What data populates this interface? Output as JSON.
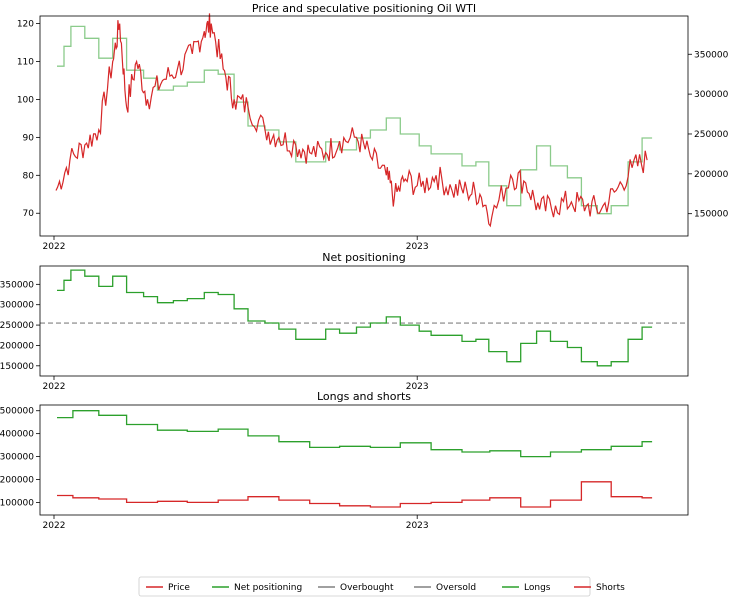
{
  "chart_data": [
    {
      "type": "line",
      "title": "Price and speculative positioning Oil WTI",
      "x_tick_labels": [
        "2022",
        "2023"
      ],
      "x_range": [
        "2022-01-01",
        "2023-08-31"
      ],
      "left_axis": {
        "ylim": [
          64,
          122
        ],
        "ticks": [
          70,
          80,
          90,
          100,
          110,
          120
        ]
      },
      "right_axis": {
        "ylim": [
          122000,
          398000
        ],
        "ticks": [
          150000,
          200000,
          250000,
          300000,
          350000
        ]
      },
      "series": [
        {
          "name": "Price",
          "axis": "left",
          "color": "#d62728",
          "x": [
            "2022-01-03",
            "2022-01-17",
            "2022-02-01",
            "2022-02-15",
            "2022-03-01",
            "2022-03-08",
            "2022-03-15",
            "2022-03-25",
            "2022-04-05",
            "2022-04-20",
            "2022-05-05",
            "2022-05-20",
            "2022-06-01",
            "2022-06-08",
            "2022-06-20",
            "2022-07-01",
            "2022-07-15",
            "2022-08-01",
            "2022-08-15",
            "2022-09-01",
            "2022-09-15",
            "2022-10-01",
            "2022-10-15",
            "2022-11-01",
            "2022-11-15",
            "2022-12-01",
            "2022-12-09",
            "2022-12-20",
            "2023-01-05",
            "2023-01-20",
            "2023-02-05",
            "2023-02-20",
            "2023-03-05",
            "2023-03-17",
            "2023-04-05",
            "2023-04-20",
            "2023-05-04",
            "2023-05-20",
            "2023-06-05",
            "2023-06-20",
            "2023-07-05",
            "2023-07-20",
            "2023-08-05",
            "2023-08-20"
          ],
          "y": [
            76,
            84,
            88,
            92,
            110,
            120,
            98,
            110,
            100,
            105,
            108,
            112,
            118,
            120,
            108,
            100,
            98,
            92,
            90,
            88,
            86,
            86,
            89,
            90,
            85,
            80,
            74,
            79,
            77,
            80,
            76,
            76,
            75,
            69,
            80,
            78,
            71,
            72,
            73,
            72,
            71,
            76,
            82,
            84
          ]
        },
        {
          "name": "Net positioning",
          "axis": "right",
          "color": "#2ca02c",
          "alpha": 0.55,
          "x": [
            "2022-01-04",
            "2022-01-11",
            "2022-01-18",
            "2022-02-01",
            "2022-02-15",
            "2022-03-01",
            "2022-03-15",
            "2022-04-01",
            "2022-04-15",
            "2022-05-01",
            "2022-05-15",
            "2022-06-01",
            "2022-06-15",
            "2022-07-01",
            "2022-07-15",
            "2022-08-01",
            "2022-08-15",
            "2022-09-01",
            "2022-09-15",
            "2022-10-01",
            "2022-10-15",
            "2022-11-01",
            "2022-11-15",
            "2022-12-01",
            "2022-12-15",
            "2023-01-03",
            "2023-01-15",
            "2023-02-01",
            "2023-02-15",
            "2023-03-01",
            "2023-03-14",
            "2023-04-01",
            "2023-04-15",
            "2023-05-01",
            "2023-05-15",
            "2023-06-01",
            "2023-06-15",
            "2023-07-01",
            "2023-07-15",
            "2023-08-01",
            "2023-08-15"
          ],
          "y": [
            335000,
            360000,
            385000,
            370000,
            345000,
            370000,
            330000,
            320000,
            305000,
            310000,
            315000,
            330000,
            325000,
            290000,
            260000,
            255000,
            240000,
            215000,
            215000,
            240000,
            230000,
            245000,
            255000,
            270000,
            250000,
            235000,
            225000,
            225000,
            210000,
            215000,
            185000,
            160000,
            205000,
            235000,
            210000,
            195000,
            160000,
            150000,
            160000,
            215000,
            245000
          ]
        }
      ]
    },
    {
      "type": "line",
      "title": "Net positioning",
      "x_tick_labels": [
        "2022",
        "2023"
      ],
      "ylim": [
        125000,
        395000
      ],
      "y_ticks": [
        150000,
        200000,
        250000,
        300000,
        350000
      ],
      "series": [
        {
          "name": "Net positioning",
          "color": "#2ca02c",
          "x": [
            "2022-01-04",
            "2022-01-11",
            "2022-01-18",
            "2022-02-01",
            "2022-02-15",
            "2022-03-01",
            "2022-03-15",
            "2022-04-01",
            "2022-04-15",
            "2022-05-01",
            "2022-05-15",
            "2022-06-01",
            "2022-06-15",
            "2022-07-01",
            "2022-07-15",
            "2022-08-01",
            "2022-08-15",
            "2022-09-01",
            "2022-09-15",
            "2022-10-01",
            "2022-10-15",
            "2022-11-01",
            "2022-11-15",
            "2022-12-01",
            "2022-12-15",
            "2023-01-03",
            "2023-01-15",
            "2023-02-01",
            "2023-02-15",
            "2023-03-01",
            "2023-03-14",
            "2023-04-01",
            "2023-04-15",
            "2023-05-01",
            "2023-05-15",
            "2023-06-01",
            "2023-06-15",
            "2023-07-01",
            "2023-07-15",
            "2023-08-01",
            "2023-08-15"
          ],
          "y": [
            335000,
            360000,
            385000,
            370000,
            345000,
            370000,
            330000,
            320000,
            305000,
            310000,
            315000,
            330000,
            325000,
            290000,
            260000,
            255000,
            240000,
            215000,
            215000,
            240000,
            230000,
            245000,
            255000,
            270000,
            250000,
            235000,
            225000,
            225000,
            210000,
            215000,
            185000,
            160000,
            205000,
            235000,
            210000,
            195000,
            160000,
            150000,
            160000,
            215000,
            245000
          ]
        },
        {
          "name": "Overbought",
          "color": "#808080",
          "dashed": true,
          "y_const": 255000
        },
        {
          "name": "Oversold",
          "color": "#808080",
          "dashed": true,
          "y_const": 255000
        }
      ]
    },
    {
      "type": "line",
      "title": "Longs and shorts",
      "x_tick_labels": [
        "2022",
        "2023"
      ],
      "ylim": [
        45000,
        525000
      ],
      "y_ticks": [
        100000,
        200000,
        300000,
        400000,
        500000
      ],
      "series": [
        {
          "name": "Longs",
          "color": "#2ca02c",
          "x": [
            "2022-01-04",
            "2022-01-20",
            "2022-02-15",
            "2022-03-15",
            "2022-04-15",
            "2022-05-15",
            "2022-06-15",
            "2022-07-15",
            "2022-08-15",
            "2022-09-15",
            "2022-10-15",
            "2022-11-15",
            "2022-12-15",
            "2023-01-15",
            "2023-02-15",
            "2023-03-15",
            "2023-04-15",
            "2023-05-15",
            "2023-06-15",
            "2023-07-15",
            "2023-08-15"
          ],
          "y": [
            470000,
            500000,
            480000,
            440000,
            415000,
            410000,
            420000,
            390000,
            365000,
            340000,
            345000,
            340000,
            360000,
            330000,
            320000,
            325000,
            300000,
            320000,
            330000,
            345000,
            365000
          ]
        },
        {
          "name": "Shorts",
          "color": "#d62728",
          "x": [
            "2022-01-04",
            "2022-01-20",
            "2022-02-15",
            "2022-03-15",
            "2022-04-15",
            "2022-05-15",
            "2022-06-15",
            "2022-07-15",
            "2022-08-15",
            "2022-09-15",
            "2022-10-15",
            "2022-11-15",
            "2022-12-15",
            "2023-01-15",
            "2023-02-15",
            "2023-03-15",
            "2023-04-15",
            "2023-05-15",
            "2023-06-15",
            "2023-07-15",
            "2023-08-15"
          ],
          "y": [
            130000,
            120000,
            115000,
            100000,
            105000,
            100000,
            110000,
            125000,
            110000,
            95000,
            85000,
            80000,
            95000,
            100000,
            110000,
            120000,
            80000,
            110000,
            190000,
            125000,
            120000
          ]
        }
      ]
    }
  ],
  "legend": {
    "placement": "bottom-center",
    "entries": [
      {
        "label": "Price",
        "color": "#d62728",
        "dashed": false
      },
      {
        "label": "Net positioning",
        "color": "#2ca02c",
        "dashed": false
      },
      {
        "label": "Overbought",
        "color": "#808080",
        "dashed": false
      },
      {
        "label": "Oversold",
        "color": "#808080",
        "dashed": false
      },
      {
        "label": "Longs",
        "color": "#2ca02c",
        "dashed": false
      },
      {
        "label": "Shorts",
        "color": "#d62728",
        "dashed": false
      }
    ]
  }
}
